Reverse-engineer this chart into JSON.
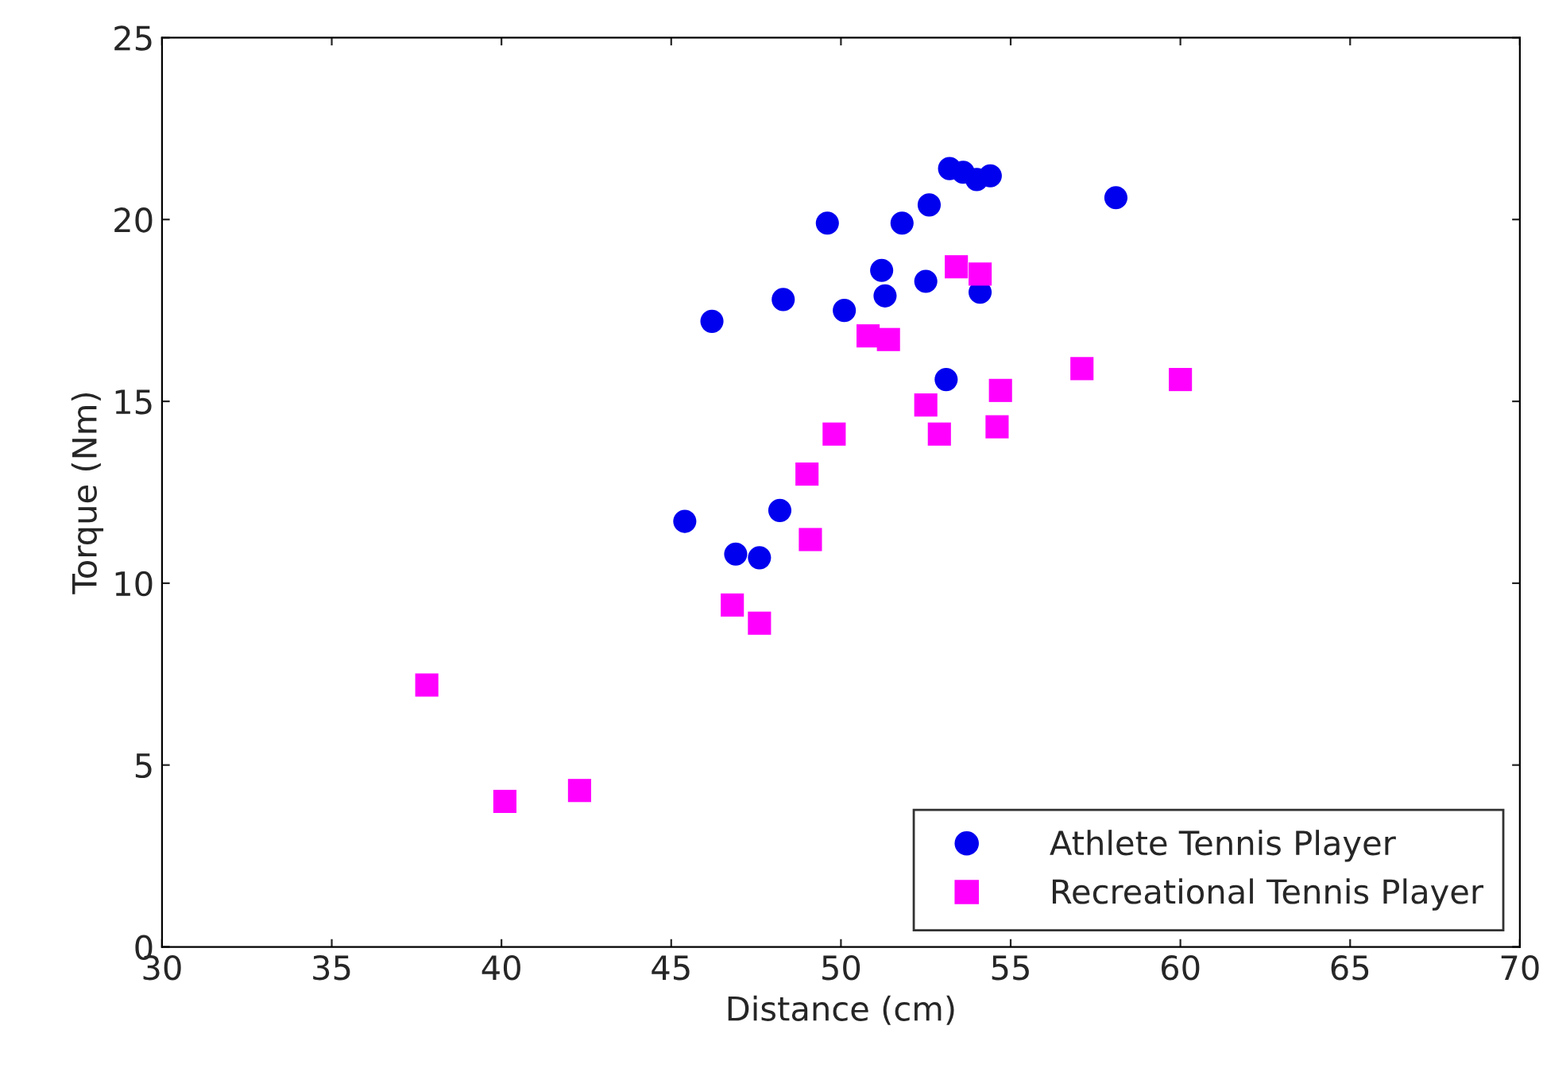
{
  "chart_data": {
    "type": "scatter",
    "xlabel": "Distance (cm)",
    "ylabel": "Torque (Nm)",
    "xlim": [
      30,
      70
    ],
    "xticks": [
      30,
      35,
      40,
      45,
      50,
      55,
      60,
      65,
      70
    ],
    "ylim": [
      0,
      25
    ],
    "yticks": [
      0,
      5,
      10,
      15,
      20,
      25
    ],
    "grid": false,
    "legend": "bottom right",
    "series": [
      {
        "name": "Athlete Tennis Player",
        "color": "#0000ee",
        "marker": "circle",
        "x": [
          46.2,
          45.4,
          46.9,
          47.6,
          48.2,
          48.3,
          49.6,
          50.1,
          51.2,
          51.3,
          51.8,
          52.5,
          52.6,
          53.1,
          53.2,
          53.6,
          54.0,
          54.4,
          54.1,
          58.1
        ],
        "values": [
          17.2,
          11.7,
          10.8,
          10.7,
          12.0,
          17.8,
          19.9,
          17.5,
          18.6,
          17.9,
          19.9,
          18.3,
          20.4,
          15.6,
          21.4,
          21.3,
          21.1,
          21.2,
          18.0,
          20.6
        ]
      },
      {
        "name": "Recreational Tennis Player",
        "color": "#ff00ff",
        "marker": "square",
        "x": [
          37.8,
          40.1,
          42.3,
          46.8,
          47.6,
          49.0,
          49.1,
          49.8,
          50.8,
          51.4,
          52.5,
          52.9,
          53.4,
          54.1,
          54.6,
          54.7,
          57.1,
          60.0
        ],
        "values": [
          7.2,
          4.0,
          4.3,
          9.4,
          8.9,
          13.0,
          11.2,
          14.1,
          16.8,
          16.7,
          14.9,
          14.1,
          18.7,
          18.5,
          14.3,
          15.3,
          15.9,
          15.6
        ]
      }
    ]
  }
}
